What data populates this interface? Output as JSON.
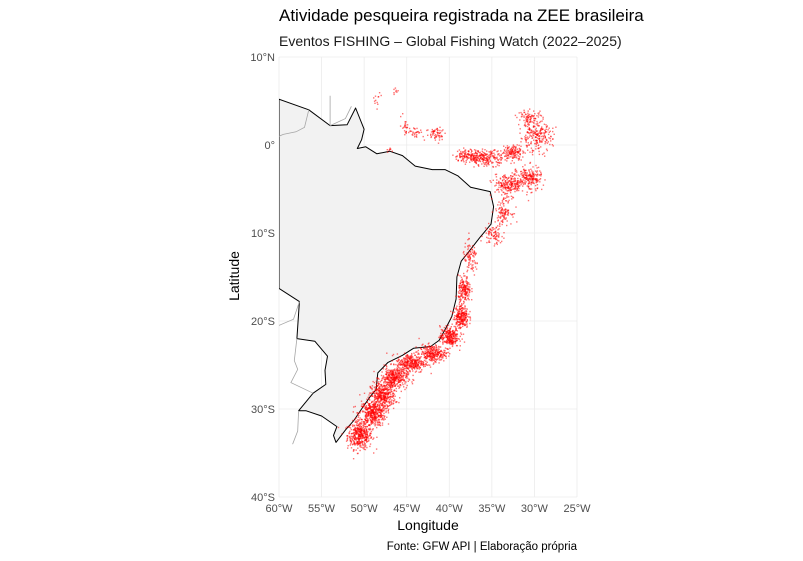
{
  "chart_data": {
    "type": "scatter",
    "title": "Atividade pesqueira registrada na ZEE brasileira",
    "subtitle": "Eventos FISHING – Global Fishing Watch (2022–2025)",
    "xlabel": "Longitude",
    "ylabel": "Latitude",
    "caption": "Fonte: GFW API | Elaboração própria",
    "xlim": [
      -60,
      -25
    ],
    "ylim": [
      -40,
      10
    ],
    "x_ticks": [
      {
        "value": -60,
        "label": "60°W"
      },
      {
        "value": -55,
        "label": "55°W"
      },
      {
        "value": -50,
        "label": "50°W"
      },
      {
        "value": -45,
        "label": "45°W"
      },
      {
        "value": -40,
        "label": "40°W"
      },
      {
        "value": -35,
        "label": "35°W"
      },
      {
        "value": -30,
        "label": "30°W"
      },
      {
        "value": -25,
        "label": "25°W"
      }
    ],
    "y_ticks": [
      {
        "value": 10,
        "label": "10°N"
      },
      {
        "value": 0,
        "label": "0°"
      },
      {
        "value": -10,
        "label": "10°S"
      },
      {
        "value": -20,
        "label": "20°S"
      },
      {
        "value": -30,
        "label": "30°S"
      },
      {
        "value": -40,
        "label": "40°S"
      }
    ],
    "grid": true,
    "colors": {
      "points": "#ff0000",
      "land": "#f2f2f2",
      "coast": "#000000",
      "borders": "#a6a6a6",
      "grid": "#ebebeb"
    },
    "brazil_outline": [
      [
        -60,
        5.2
      ],
      [
        -56.5,
        4.0
      ],
      [
        -54,
        2.2
      ],
      [
        -52,
        2.3
      ],
      [
        -51,
        4.2
      ],
      [
        -50,
        1.8
      ],
      [
        -50.3,
        0.6
      ],
      [
        -50.8,
        -0.4
      ],
      [
        -49.8,
        -0.2
      ],
      [
        -48.5,
        -1.0
      ],
      [
        -47,
        -0.7
      ],
      [
        -45.5,
        -1.2
      ],
      [
        -44,
        -2.4
      ],
      [
        -42,
        -2.8
      ],
      [
        -40.5,
        -2.8
      ],
      [
        -39,
        -3.5
      ],
      [
        -37.5,
        -4.8
      ],
      [
        -35.2,
        -5.3
      ],
      [
        -34.8,
        -7.0
      ],
      [
        -35.1,
        -9.0
      ],
      [
        -36.4,
        -10.5
      ],
      [
        -37.6,
        -12.0
      ],
      [
        -38.6,
        -13.2
      ],
      [
        -39.1,
        -15.0
      ],
      [
        -39.2,
        -17.5
      ],
      [
        -39.7,
        -19.5
      ],
      [
        -40.4,
        -20.8
      ],
      [
        -41.2,
        -22.2
      ],
      [
        -42.2,
        -22.9
      ],
      [
        -44.2,
        -23.1
      ],
      [
        -45.5,
        -23.9
      ],
      [
        -47.2,
        -24.7
      ],
      [
        -48.4,
        -25.9
      ],
      [
        -48.6,
        -27.8
      ],
      [
        -49.3,
        -28.6
      ],
      [
        -50.3,
        -30.0
      ],
      [
        -51.2,
        -31.3
      ],
      [
        -52.2,
        -32.4
      ],
      [
        -53.3,
        -33.8
      ],
      [
        -53.6,
        -33.0
      ],
      [
        -53.2,
        -32.0
      ],
      [
        -55,
        -30.8
      ],
      [
        -56.8,
        -30.2
      ],
      [
        -57.7,
        -30.2
      ],
      [
        -56,
        -28.2
      ],
      [
        -54.5,
        -27.2
      ],
      [
        -54.6,
        -25.6
      ],
      [
        -54.3,
        -24.0
      ],
      [
        -55.8,
        -22.3
      ],
      [
        -57.9,
        -22.0
      ],
      [
        -57.6,
        -17.8
      ],
      [
        -60,
        -16.3
      ]
    ],
    "bolivia_border": [
      [
        -60,
        -16.3
      ],
      [
        -60.3,
        -13.5
      ],
      [
        -62,
        -11.0
      ]
    ],
    "neighbor_borders": [
      [
        [
          -56.5,
          4.0
        ],
        [
          -57,
          2.0
        ],
        [
          -58,
          1.5
        ],
        [
          -59.5,
          1.2
        ],
        [
          -60,
          1.0
        ]
      ],
      [
        [
          -54,
          2.2
        ],
        [
          -54,
          5.6
        ]
      ],
      [
        [
          -51.5,
          4.4
        ],
        [
          -52.2,
          3.0
        ],
        [
          -54,
          2.2
        ]
      ],
      [
        [
          -57.7,
          -30.2
        ],
        [
          -57.8,
          -32.5
        ],
        [
          -58.4,
          -34.0
        ]
      ],
      [
        [
          -57.9,
          -22.0
        ],
        [
          -58.2,
          -24.5
        ],
        [
          -57.8,
          -25.5
        ],
        [
          -58.6,
          -27.0
        ],
        [
          -56,
          -28.2
        ]
      ],
      [
        [
          -57.6,
          -17.8
        ],
        [
          -58.3,
          -19.8
        ],
        [
          -60,
          -20.5
        ]
      ]
    ],
    "fishing_clusters": [
      {
        "lon": -50.5,
        "lat": -33.0,
        "sx": 1.2,
        "sy": 1.3,
        "n": 400
      },
      {
        "lon": -49.0,
        "lat": -30.5,
        "sx": 1.3,
        "sy": 1.2,
        "n": 400
      },
      {
        "lon": -47.8,
        "lat": -28.5,
        "sx": 1.2,
        "sy": 1.2,
        "n": 380
      },
      {
        "lon": -46.5,
        "lat": -26.5,
        "sx": 1.3,
        "sy": 1.0,
        "n": 360
      },
      {
        "lon": -44.5,
        "lat": -24.8,
        "sx": 1.4,
        "sy": 0.9,
        "n": 320
      },
      {
        "lon": -42.0,
        "lat": -23.7,
        "sx": 1.3,
        "sy": 0.8,
        "n": 280
      },
      {
        "lon": -40.0,
        "lat": -21.8,
        "sx": 0.9,
        "sy": 1.0,
        "n": 260
      },
      {
        "lon": -38.6,
        "lat": -19.5,
        "sx": 0.7,
        "sy": 1.1,
        "n": 240
      },
      {
        "lon": -38.2,
        "lat": -16.5,
        "sx": 0.6,
        "sy": 1.3,
        "n": 180
      },
      {
        "lon": -37.5,
        "lat": -13.0,
        "sx": 0.8,
        "sy": 1.5,
        "n": 90
      },
      {
        "lon": -34.8,
        "lat": -10.2,
        "sx": 0.9,
        "sy": 1.0,
        "n": 80
      },
      {
        "lon": -33.6,
        "lat": -7.5,
        "sx": 0.8,
        "sy": 1.2,
        "n": 110
      },
      {
        "lon": -33.0,
        "lat": -4.5,
        "sx": 1.5,
        "sy": 1.0,
        "n": 220
      },
      {
        "lon": -30.6,
        "lat": -3.8,
        "sx": 1.2,
        "sy": 1.1,
        "n": 200
      },
      {
        "lon": -35.5,
        "lat": -1.5,
        "sx": 2.0,
        "sy": 0.7,
        "n": 200
      },
      {
        "lon": -37.5,
        "lat": -1.2,
        "sx": 1.6,
        "sy": 0.6,
        "n": 140
      },
      {
        "lon": -32.5,
        "lat": -0.8,
        "sx": 1.0,
        "sy": 0.7,
        "n": 130
      },
      {
        "lon": -29.8,
        "lat": 0.9,
        "sx": 1.6,
        "sy": 1.4,
        "n": 220
      },
      {
        "lon": -30.5,
        "lat": 3.0,
        "sx": 1.2,
        "sy": 0.8,
        "n": 90
      },
      {
        "lon": -41.5,
        "lat": 1.3,
        "sx": 1.0,
        "sy": 0.7,
        "n": 60
      },
      {
        "lon": -44.0,
        "lat": 1.5,
        "sx": 0.8,
        "sy": 0.5,
        "n": 30
      },
      {
        "lon": -45.2,
        "lat": 2.2,
        "sx": 0.4,
        "sy": 0.8,
        "n": 22
      },
      {
        "lon": -48.5,
        "lat": 5.3,
        "sx": 0.4,
        "sy": 0.6,
        "n": 12
      },
      {
        "lon": -46.2,
        "lat": 6.0,
        "sx": 0.3,
        "sy": 0.5,
        "n": 8
      },
      {
        "lon": -47.0,
        "lat": -0.5,
        "sx": 0.3,
        "sy": 0.3,
        "n": 8
      }
    ]
  }
}
